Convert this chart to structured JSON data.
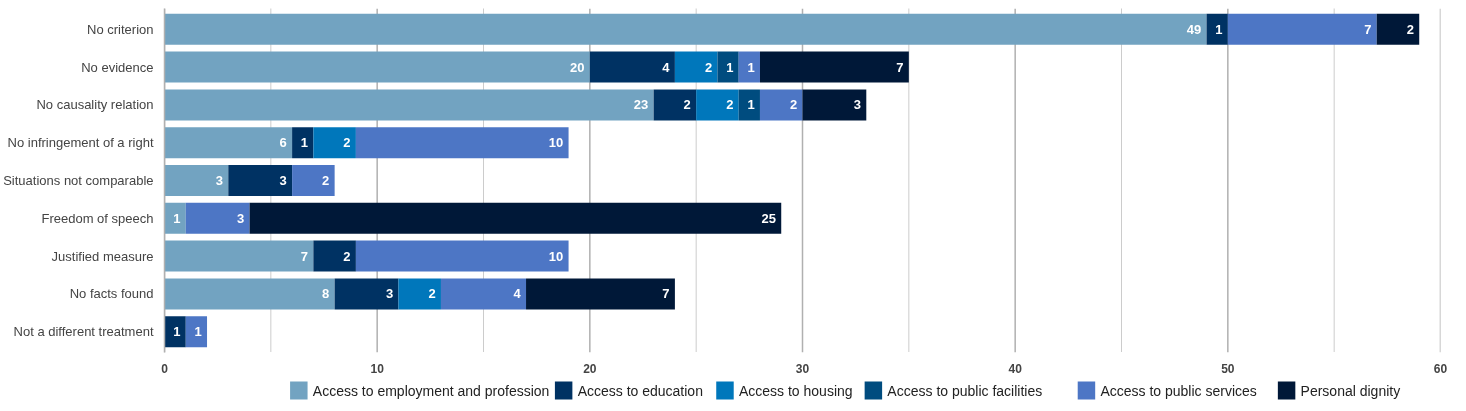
{
  "chart_data": {
    "type": "bar",
    "orientation": "horizontal",
    "stacked": true,
    "data_labels": true,
    "legend": "bottom",
    "grid": "x",
    "categories": [
      "No criterion",
      "No evidence",
      "No causality relation",
      "No infringement of a right",
      "Situations not comparable",
      "Freedom of speech",
      "Justified measure",
      "No facts found",
      "Not a different treatment"
    ],
    "xlim": [
      0,
      60
    ],
    "xticks": [
      0,
      {
        "value": 5,
        "label": null
      },
      10,
      {
        "value": 15,
        "label": null
      },
      20,
      {
        "value": 25,
        "label": null
      },
      30,
      {
        "value": 35,
        "label": null
      },
      40,
      {
        "value": 45,
        "label": null
      },
      50,
      {
        "value": 55,
        "label": null
      },
      60
    ],
    "series": [
      {
        "name": "Access to employment and profession",
        "color": "#72a3c1",
        "values": [
          49,
          20,
          23,
          6,
          3,
          1,
          7,
          8,
          null
        ]
      },
      {
        "name": "Access to education",
        "color": "#003263",
        "values": [
          1,
          4,
          2,
          1,
          3,
          null,
          2,
          3,
          1
        ]
      },
      {
        "name": "Access to housing",
        "color": "#0077bb",
        "values": [
          null,
          2,
          2,
          2,
          null,
          null,
          null,
          2,
          null
        ]
      },
      {
        "name": "Access to public facilities",
        "color": "#004c7f",
        "values": [
          null,
          1,
          1,
          null,
          null,
          null,
          null,
          null,
          null
        ]
      },
      {
        "name": "Access to public services",
        "color": "#4d76c5",
        "values": [
          7,
          1,
          2,
          10,
          2,
          3,
          10,
          4,
          1
        ]
      },
      {
        "name": "Personal dignity",
        "color": "#001838",
        "values": [
          2,
          7,
          3,
          null,
          null,
          25,
          null,
          7,
          null
        ]
      }
    ]
  }
}
